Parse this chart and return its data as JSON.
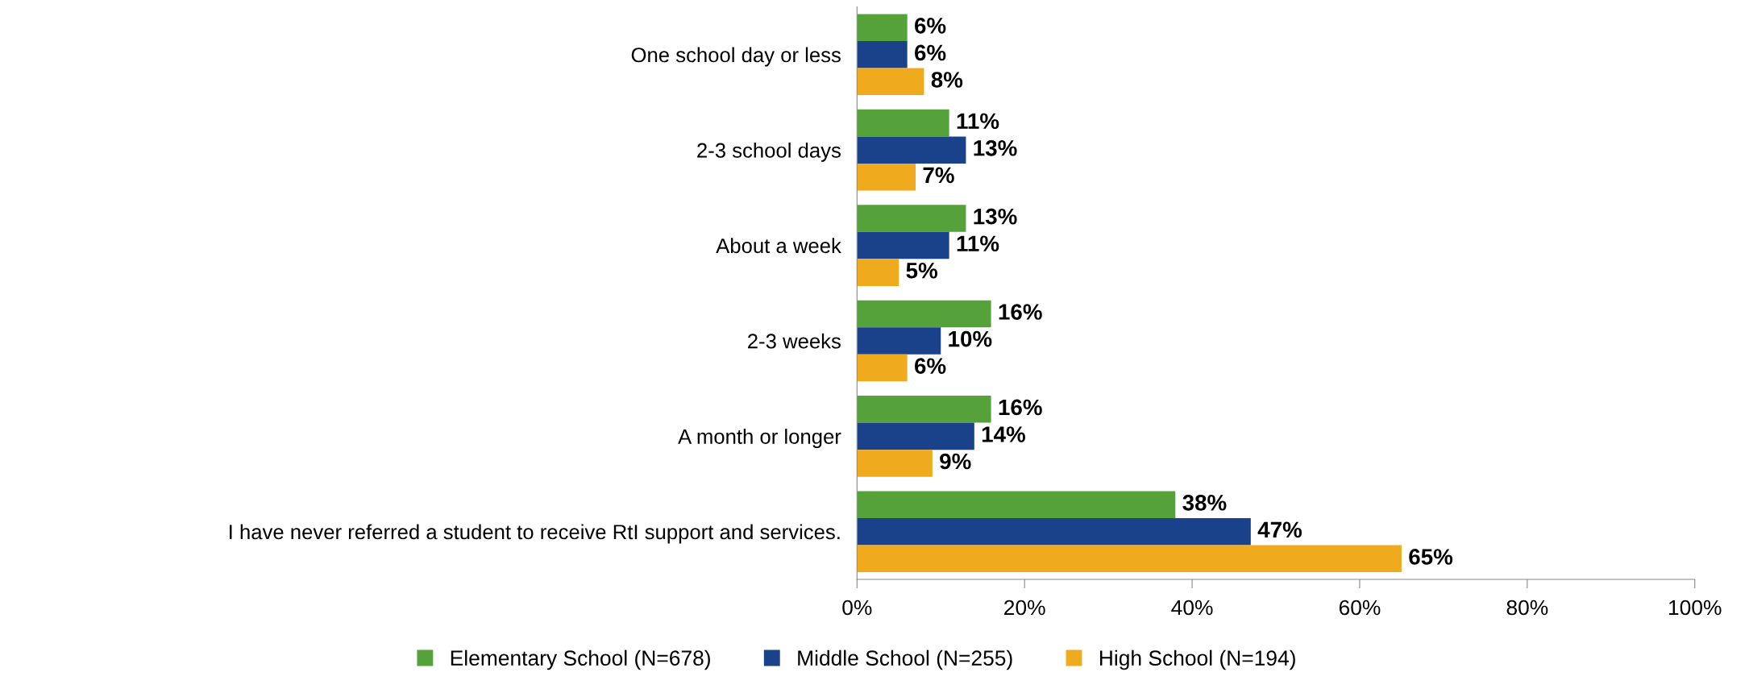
{
  "chart_data": {
    "type": "bar",
    "orientation": "horizontal",
    "categories": [
      "One school day or less",
      "2-3 school days",
      "About a week",
      "2-3 weeks",
      "A month or longer",
      "I have never referred a student to receive RtI support and services."
    ],
    "series": [
      {
        "name": "Elementary School (N=678)",
        "color": "#56a23a",
        "values": [
          6,
          11,
          13,
          16,
          16,
          38
        ],
        "value_labels": [
          "6%",
          "11%",
          "13%",
          "16%",
          "16%",
          "38%"
        ]
      },
      {
        "name": "Middle School (N=255)",
        "color": "#1a428a",
        "values": [
          6,
          13,
          11,
          10,
          14,
          47
        ],
        "value_labels": [
          "6%",
          "13%",
          "11%",
          "10%",
          "14%",
          "47%"
        ]
      },
      {
        "name": "High School (N=194)",
        "color": "#f0aa1e",
        "values": [
          8,
          7,
          5,
          6,
          9,
          65
        ],
        "value_labels": [
          "8%",
          "7%",
          "5%",
          "6%",
          "9%",
          "65%"
        ]
      }
    ],
    "xlim": [
      0,
      100
    ],
    "xticks": [
      {
        "value": 0,
        "label": "0%"
      },
      {
        "value": 20,
        "label": "20%"
      },
      {
        "value": 40,
        "label": "40%"
      },
      {
        "value": 60,
        "label": "60%"
      },
      {
        "value": 80,
        "label": "80%"
      },
      {
        "value": 100,
        "label": "100%"
      }
    ],
    "grid": false,
    "legend": "bottom"
  }
}
